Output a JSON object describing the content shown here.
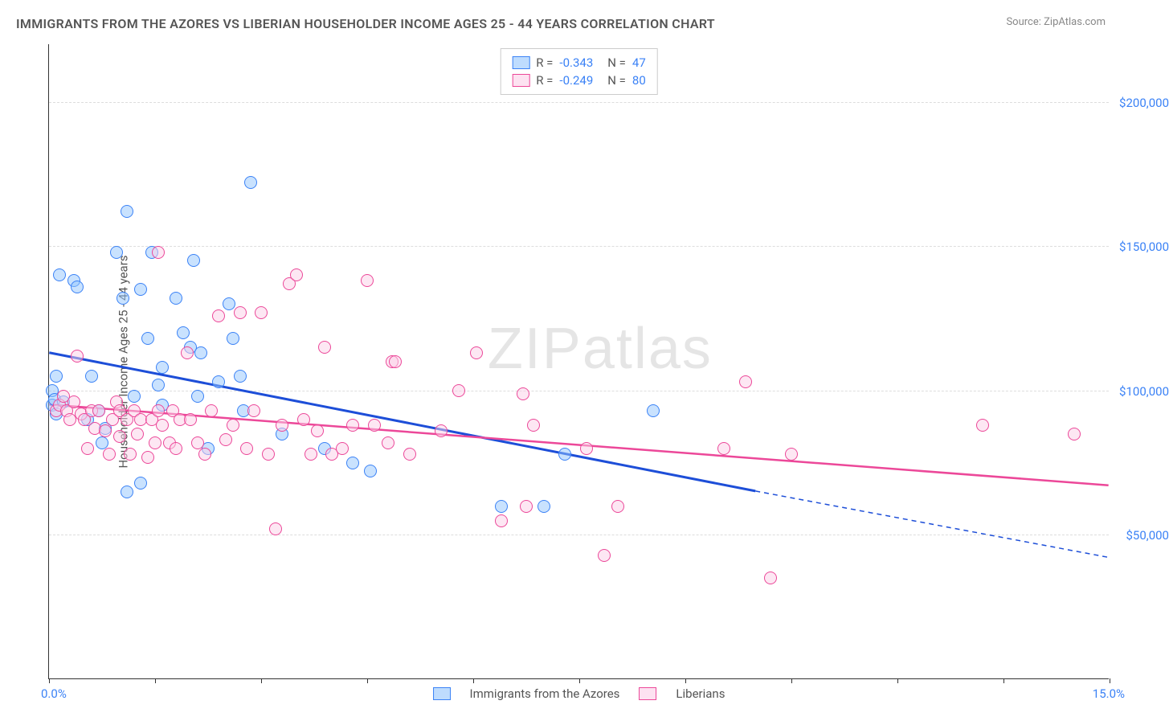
{
  "title": "IMMIGRANTS FROM THE AZORES VS LIBERIAN HOUSEHOLDER INCOME AGES 25 - 44 YEARS CORRELATION CHART",
  "source_label": "Source:",
  "source_name": "ZipAtlas.com",
  "watermark": "ZIPatlas",
  "y_axis_title": "Householder Income Ages 25 - 44 years",
  "chart": {
    "type": "scatter",
    "xlim": [
      0,
      15
    ],
    "ylim": [
      0,
      220000
    ],
    "x_tick_positions": [
      0,
      1.5,
      3.0,
      4.5,
      6.0,
      7.5,
      9.0,
      10.5,
      12.0,
      13.5,
      15.0
    ],
    "x_label_min": "0.0%",
    "x_label_max": "15.0%",
    "y_ticks": [
      {
        "v": 50000,
        "label": "$50,000"
      },
      {
        "v": 100000,
        "label": "$100,000"
      },
      {
        "v": 150000,
        "label": "$150,000"
      },
      {
        "v": 200000,
        "label": "$200,000"
      }
    ],
    "grid_color": "#dddddd",
    "background_color": "#ffffff",
    "marker_radius": 8,
    "series": [
      {
        "name": "Immigrants from the Azores",
        "color_fill": "rgba(147,197,253,0.5)",
        "color_stroke": "#3b82f6",
        "class": "blue",
        "R": "-0.343",
        "N": "47",
        "trend": {
          "x1": 0,
          "y1": 113000,
          "x2": 10,
          "y2": 65000,
          "x2_dash": 15,
          "y2_dash": 42000,
          "stroke": "#1d4ed8",
          "width": 3
        },
        "points": [
          [
            0.05,
            95000
          ],
          [
            0.05,
            100000
          ],
          [
            0.08,
            97000
          ],
          [
            0.1,
            105000
          ],
          [
            0.1,
            92000
          ],
          [
            0.15,
            140000
          ],
          [
            0.2,
            96000
          ],
          [
            0.35,
            138000
          ],
          [
            0.4,
            136000
          ],
          [
            0.55,
            90000
          ],
          [
            0.6,
            105000
          ],
          [
            0.7,
            93000
          ],
          [
            0.75,
            82000
          ],
          [
            0.8,
            87000
          ],
          [
            0.95,
            148000
          ],
          [
            1.05,
            132000
          ],
          [
            1.1,
            65000
          ],
          [
            1.1,
            162000
          ],
          [
            1.2,
            98000
          ],
          [
            1.3,
            68000
          ],
          [
            1.3,
            135000
          ],
          [
            1.4,
            118000
          ],
          [
            1.45,
            148000
          ],
          [
            1.55,
            102000
          ],
          [
            1.6,
            108000
          ],
          [
            1.6,
            95000
          ],
          [
            1.8,
            132000
          ],
          [
            1.9,
            120000
          ],
          [
            2.0,
            115000
          ],
          [
            2.05,
            145000
          ],
          [
            2.1,
            98000
          ],
          [
            2.15,
            113000
          ],
          [
            2.25,
            80000
          ],
          [
            2.4,
            103000
          ],
          [
            2.55,
            130000
          ],
          [
            2.6,
            118000
          ],
          [
            2.7,
            105000
          ],
          [
            2.75,
            93000
          ],
          [
            2.85,
            172000
          ],
          [
            3.3,
            85000
          ],
          [
            3.9,
            80000
          ],
          [
            4.3,
            75000
          ],
          [
            4.55,
            72000
          ],
          [
            6.4,
            60000
          ],
          [
            7.0,
            60000
          ],
          [
            7.3,
            78000
          ],
          [
            8.55,
            93000
          ]
        ]
      },
      {
        "name": "Liberians",
        "color_fill": "rgba(251,207,232,0.5)",
        "color_stroke": "#ec4899",
        "class": "pink",
        "R": "-0.249",
        "N": "80",
        "trend": {
          "x1": 0,
          "y1": 95000,
          "x2": 15,
          "y2": 67000,
          "stroke": "#ec4899",
          "width": 2.5
        },
        "points": [
          [
            0.1,
            93000
          ],
          [
            0.15,
            95000
          ],
          [
            0.2,
            98000
          ],
          [
            0.25,
            93000
          ],
          [
            0.3,
            90000
          ],
          [
            0.35,
            96000
          ],
          [
            0.4,
            112000
          ],
          [
            0.45,
            92000
          ],
          [
            0.5,
            90000
          ],
          [
            0.55,
            80000
          ],
          [
            0.6,
            93000
          ],
          [
            0.65,
            87000
          ],
          [
            0.7,
            93000
          ],
          [
            0.8,
            86000
          ],
          [
            0.85,
            78000
          ],
          [
            0.9,
            90000
          ],
          [
            0.95,
            96000
          ],
          [
            1.0,
            84000
          ],
          [
            1.0,
            93000
          ],
          [
            1.1,
            90000
          ],
          [
            1.15,
            78000
          ],
          [
            1.2,
            93000
          ],
          [
            1.25,
            85000
          ],
          [
            1.3,
            90000
          ],
          [
            1.4,
            77000
          ],
          [
            1.45,
            90000
          ],
          [
            1.5,
            82000
          ],
          [
            1.55,
            93000
          ],
          [
            1.55,
            148000
          ],
          [
            1.6,
            88000
          ],
          [
            1.7,
            82000
          ],
          [
            1.75,
            93000
          ],
          [
            1.8,
            80000
          ],
          [
            1.85,
            90000
          ],
          [
            1.95,
            113000
          ],
          [
            2.0,
            90000
          ],
          [
            2.1,
            82000
          ],
          [
            2.2,
            78000
          ],
          [
            2.3,
            93000
          ],
          [
            2.4,
            126000
          ],
          [
            2.5,
            83000
          ],
          [
            2.6,
            88000
          ],
          [
            2.7,
            127000
          ],
          [
            2.8,
            80000
          ],
          [
            2.9,
            93000
          ],
          [
            3.0,
            127000
          ],
          [
            3.1,
            78000
          ],
          [
            3.2,
            52000
          ],
          [
            3.3,
            88000
          ],
          [
            3.4,
            137000
          ],
          [
            3.5,
            140000
          ],
          [
            3.6,
            90000
          ],
          [
            3.7,
            78000
          ],
          [
            3.8,
            86000
          ],
          [
            3.9,
            115000
          ],
          [
            4.0,
            78000
          ],
          [
            4.15,
            80000
          ],
          [
            4.3,
            88000
          ],
          [
            4.5,
            138000
          ],
          [
            4.6,
            88000
          ],
          [
            4.8,
            82000
          ],
          [
            4.85,
            110000
          ],
          [
            4.9,
            110000
          ],
          [
            5.1,
            78000
          ],
          [
            5.55,
            86000
          ],
          [
            5.8,
            100000
          ],
          [
            6.05,
            113000
          ],
          [
            6.4,
            55000
          ],
          [
            6.7,
            99000
          ],
          [
            6.75,
            60000
          ],
          [
            6.85,
            88000
          ],
          [
            7.6,
            80000
          ],
          [
            7.85,
            43000
          ],
          [
            8.05,
            60000
          ],
          [
            9.55,
            80000
          ],
          [
            9.85,
            103000
          ],
          [
            10.2,
            35000
          ],
          [
            10.5,
            78000
          ],
          [
            13.2,
            88000
          ],
          [
            14.5,
            85000
          ]
        ]
      }
    ],
    "legend_bottom": [
      {
        "class": "blue",
        "label": "Immigrants from the Azores"
      },
      {
        "class": "pink",
        "label": "Liberians"
      }
    ]
  }
}
